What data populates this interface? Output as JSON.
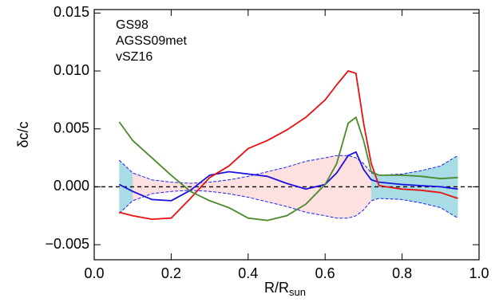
{
  "chart_data": {
    "type": "line",
    "ylabel": "δc/c",
    "xlabel": "R/R",
    "xlabel_sub": "sun",
    "xlim": [
      0,
      1
    ],
    "ylim": [
      -0.0063,
      0.0153
    ],
    "xticks": [
      {
        "value": 0,
        "label": "0.0"
      },
      {
        "value": 0.2,
        "label": "0.2"
      },
      {
        "value": 0.4,
        "label": "0.4"
      },
      {
        "value": 0.6,
        "label": "0.6"
      },
      {
        "value": 0.8,
        "label": "0.8"
      },
      {
        "value": 1,
        "label": "1.0"
      }
    ],
    "yticks": [
      {
        "value": -0.005,
        "label": "−0.005"
      },
      {
        "value": 0,
        "label": "0.000"
      },
      {
        "value": 0.005,
        "label": "0.005"
      },
      {
        "value": 0.01,
        "label": "0.010"
      },
      {
        "value": 0.015,
        "label": "0.015"
      }
    ],
    "hline": 0,
    "x": [
      0.065,
      0.1,
      0.15,
      0.2,
      0.25,
      0.3,
      0.35,
      0.4,
      0.45,
      0.5,
      0.55,
      0.6,
      0.63,
      0.66,
      0.68,
      0.7,
      0.72,
      0.74,
      0.8,
      0.85,
      0.9,
      0.945
    ],
    "band": {
      "upper": [
        0.0023,
        0.0012,
        0.0006,
        0.0004,
        0.0003,
        0.0004,
        0.0006,
        0.0009,
        0.0013,
        0.0017,
        0.0022,
        0.0025,
        0.0027,
        0.0027,
        0.0025,
        0.002,
        0.0012,
        0.001,
        0.0011,
        0.0014,
        0.0018,
        0.0027
      ],
      "lower": [
        -0.0023,
        -0.0012,
        -0.0006,
        -0.0004,
        -0.0003,
        -0.0004,
        -0.0006,
        -0.0009,
        -0.0013,
        -0.0017,
        -0.0022,
        -0.0025,
        -0.0027,
        -0.0027,
        -0.0025,
        -0.002,
        -0.0012,
        -0.001,
        -0.0011,
        -0.0014,
        -0.0018,
        -0.0027
      ],
      "inner_xlim": [
        0.1,
        0.72
      ],
      "inner_color": "#fde0e0",
      "outer_color": "#a8dde6",
      "edge_color": "#2020ee"
    },
    "series": [
      {
        "name": "GS98",
        "color": "#1a10e0",
        "values": [
          0.0002,
          -0.0004,
          -0.0011,
          -0.0012,
          -0.0003,
          0.001,
          0.0013,
          0.0011,
          0.0009,
          0.0003,
          -0.0002,
          0.0002,
          0.0012,
          0.0027,
          0.003,
          0.0015,
          0.0006,
          0.0004,
          0.0002,
          0.0001,
          0,
          -0.0002
        ]
      },
      {
        "name": "AGSS09met",
        "color": "#e81010",
        "values": [
          -0.0022,
          -0.0025,
          -0.0028,
          -0.0027,
          -0.001,
          0.0008,
          0.0018,
          0.0033,
          0.004,
          0.0049,
          0.006,
          0.0075,
          0.0088,
          0.01,
          0.0098,
          0.0055,
          0.002,
          0.0001,
          -0.0002,
          -0.0003,
          -0.0005,
          -0.001
        ]
      },
      {
        "name": "vSZ16",
        "color": "#4a8a2a",
        "values": [
          0.0056,
          0.004,
          0.0025,
          0.001,
          -0.0004,
          -0.0012,
          -0.0018,
          -0.0027,
          -0.0029,
          -0.0025,
          -0.0015,
          0.0002,
          0.002,
          0.0055,
          0.006,
          0.004,
          0.0013,
          0.001,
          0.001,
          0.0009,
          0.0007,
          0.0008
        ]
      }
    ]
  }
}
